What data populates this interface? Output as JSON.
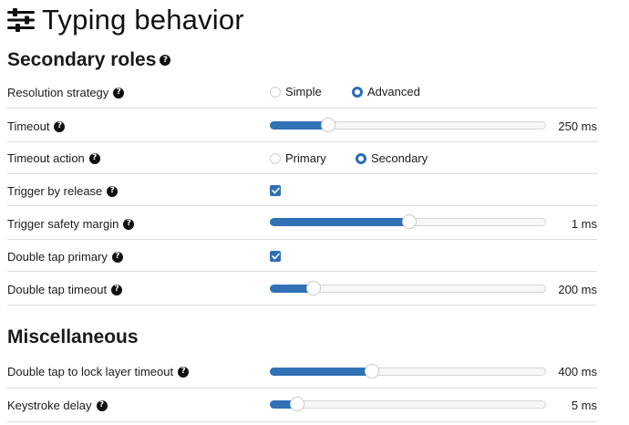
{
  "page": {
    "title": "Typing behavior",
    "icon": "sliders-icon"
  },
  "sections": {
    "secondary_roles": {
      "title": "Secondary roles",
      "resolution_strategy": {
        "label": "Resolution strategy",
        "options": [
          "Simple",
          "Advanced"
        ],
        "selected": "Advanced"
      },
      "timeout": {
        "label": "Timeout",
        "value": "250 ms",
        "fraction": 0.21
      },
      "timeout_action": {
        "label": "Timeout action",
        "options": [
          "Primary",
          "Secondary"
        ],
        "selected": "Secondary"
      },
      "trigger_by_release": {
        "label": "Trigger by release",
        "checked": true
      },
      "trigger_safety_margin": {
        "label": "Trigger safety margin",
        "value": "1 ms",
        "fraction": 0.505
      },
      "double_tap_primary": {
        "label": "Double tap primary",
        "checked": true
      },
      "double_tap_timeout": {
        "label": "Double tap timeout",
        "value": "200 ms",
        "fraction": 0.16
      }
    },
    "miscellaneous": {
      "title": "Miscellaneous",
      "double_tap_lock": {
        "label": "Double tap to lock layer timeout",
        "value": "400 ms",
        "fraction": 0.37
      },
      "keystroke_delay": {
        "label": "Keystroke delay",
        "value": "5 ms",
        "fraction": 0.1
      }
    }
  },
  "colors": {
    "accent": "#3172b6",
    "divider": "#dcdcdc"
  }
}
